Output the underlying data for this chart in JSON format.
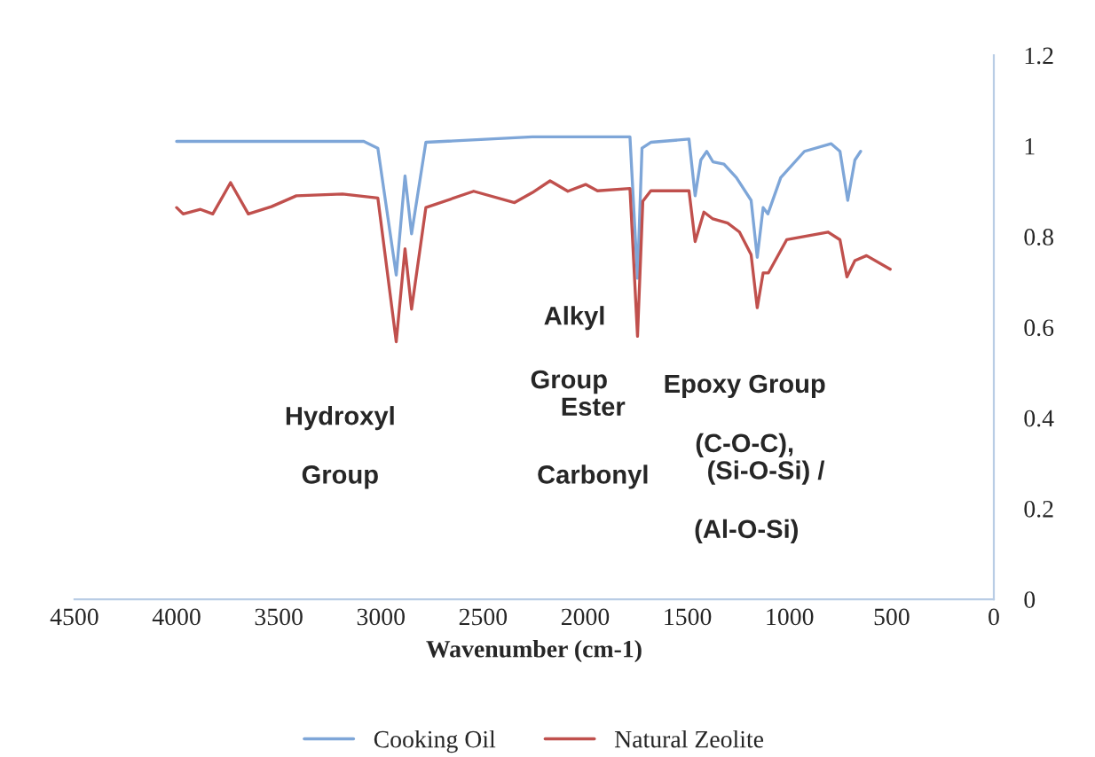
{
  "chart_data": {
    "type": "line",
    "xlabel": "Wavenumber (cm-1)",
    "xlim": [
      4500,
      0
    ],
    "xticks": [
      4500,
      4000,
      3500,
      3000,
      2500,
      2000,
      1500,
      1000,
      500,
      0
    ],
    "ylim": [
      0,
      1.2
    ],
    "yticks": [
      0,
      0.2,
      0.4,
      0.6,
      0.8,
      1,
      1.2
    ],
    "grid": false,
    "legend": "bottom",
    "marker": "none",
    "line_style": "solid",
    "series": [
      {
        "name": "Cooking Oil",
        "color": "#7ea6d8",
        "x": [
          4000,
          3084,
          3015,
          2925,
          2882,
          2850,
          2780,
          2259,
          1781,
          1744,
          1722,
          1679,
          1492,
          1462,
          1434,
          1405,
          1375,
          1321,
          1260,
          1188,
          1158,
          1129,
          1106,
          1043,
          927,
          797,
          753,
          715,
          680,
          652
        ],
        "values": [
          1.01,
          1.01,
          0.995,
          0.715,
          0.934,
          0.806,
          1.008,
          1.02,
          1.02,
          0.708,
          0.995,
          1.008,
          1.015,
          0.89,
          0.969,
          0.988,
          0.965,
          0.96,
          0.93,
          0.88,
          0.754,
          0.864,
          0.85,
          0.93,
          0.988,
          1.005,
          0.988,
          0.88,
          0.969,
          0.988
        ]
      },
      {
        "name": "Natural Zeolite",
        "color": "#c0504d",
        "x": [
          4000,
          3968,
          3883,
          3823,
          3736,
          3649,
          3536,
          3414,
          3188,
          3015,
          2925,
          2882,
          2850,
          2780,
          2546,
          2346,
          2259,
          2172,
          2085,
          1998,
          1940,
          1781,
          1744,
          1718,
          1679,
          1492,
          1462,
          1419,
          1375,
          1303,
          1245,
          1188,
          1158,
          1129,
          1103,
          1014,
          811,
          753,
          719,
          680,
          623,
          507
        ],
        "values": [
          0.864,
          0.85,
          0.86,
          0.85,
          0.919,
          0.85,
          0.866,
          0.89,
          0.894,
          0.885,
          0.568,
          0.773,
          0.64,
          0.864,
          0.9,
          0.875,
          0.897,
          0.923,
          0.9,
          0.915,
          0.901,
          0.906,
          0.58,
          0.878,
          0.901,
          0.901,
          0.789,
          0.854,
          0.839,
          0.83,
          0.81,
          0.76,
          0.643,
          0.72,
          0.72,
          0.793,
          0.81,
          0.793,
          0.711,
          0.747,
          0.758,
          0.728
        ]
      }
    ],
    "annotations": [
      "Hydroxyl",
      "Group",
      "Alkyl",
      "Group",
      "Ester",
      "Carbonyl",
      "Epoxy Group",
      "(C-O-C),",
      "(Si-O-Si) /",
      "(Al-O-Si)"
    ]
  }
}
